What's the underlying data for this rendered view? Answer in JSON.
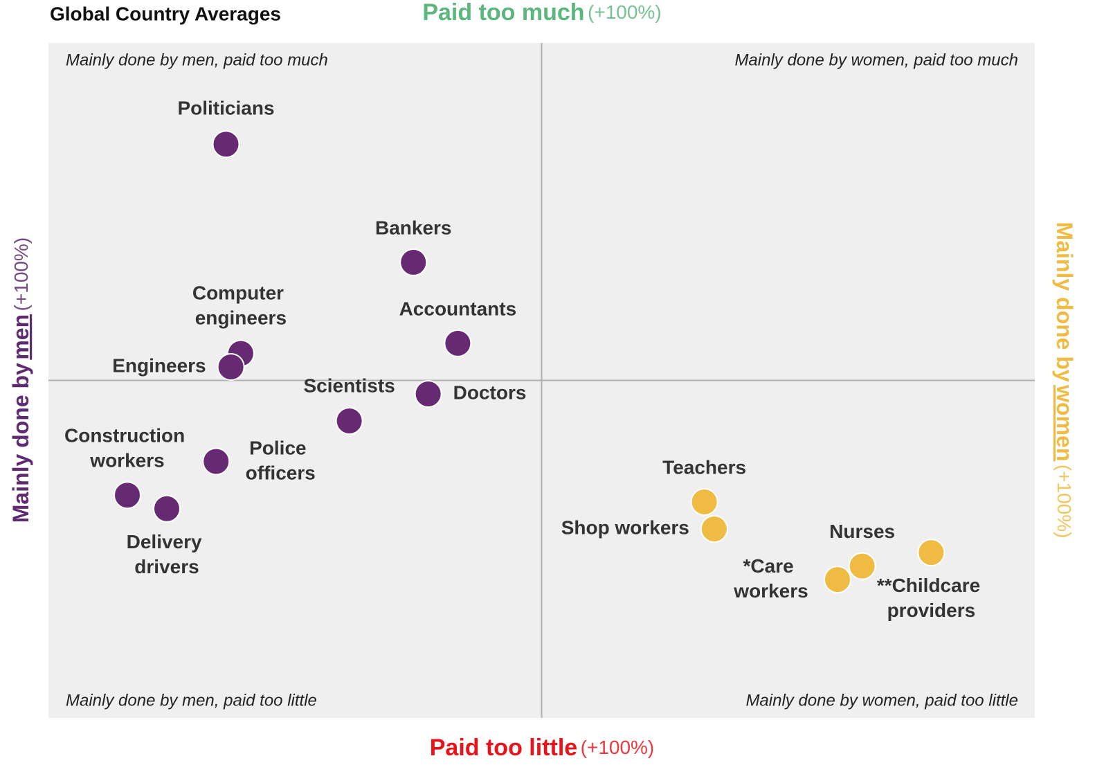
{
  "chart_data": {
    "type": "scatter",
    "title": "Global Country Averages",
    "top_label": {
      "main": "Paid too much",
      "suffix": "(+100%)",
      "color": "#5cb77e"
    },
    "bottom_label": {
      "main": "Paid too little",
      "suffix": "(+100%)",
      "color": "#e8141b"
    },
    "left_label": {
      "before": "Mainly done by",
      "emphasis": "men",
      "suffix": "(+100%)",
      "color": "#5e2a70"
    },
    "right_label": {
      "before": "Mainly done by",
      "emphasis": "women",
      "suffix": "(+100%)",
      "color": "#f0bb42"
    },
    "quadrants": {
      "top_left": "Mainly done by men, paid too much",
      "top_right": "Mainly done by women, paid too much",
      "bottom_left": "Mainly done by men, paid too little",
      "bottom_right": "Mainly done by women, paid too little"
    },
    "xlim": [
      -100,
      100
    ],
    "ylim": [
      -100,
      100
    ],
    "series": [
      {
        "color": "#662a73",
        "points": [
          {
            "label": "Politicians",
            "x": -64,
            "y": 70
          },
          {
            "label": "Bankers",
            "x": -26,
            "y": 35
          },
          {
            "label": "Computer engineers",
            "x": -61,
            "y": 8
          },
          {
            "label": "Engineers",
            "x": -63,
            "y": 4
          },
          {
            "label": "Accountants",
            "x": -17,
            "y": 11
          },
          {
            "label": "Doctors",
            "x": -23,
            "y": -4
          },
          {
            "label": "Scientists",
            "x": -39,
            "y": -12
          },
          {
            "label": "Police officers",
            "x": -66,
            "y": -24
          },
          {
            "label": "Construction workers",
            "x": -84,
            "y": -34
          },
          {
            "label": "Delivery drivers",
            "x": -76,
            "y": -38
          }
        ]
      },
      {
        "color": "#f0bb42",
        "points": [
          {
            "label": "Teachers",
            "x": 33,
            "y": -36
          },
          {
            "label": "Shop workers",
            "x": 35,
            "y": -44
          },
          {
            "label": "Nurses",
            "x": 65,
            "y": -55
          },
          {
            "label": "*Care workers",
            "x": 60,
            "y": -59
          },
          {
            "label": "**Childcare providers",
            "x": 79,
            "y": -51
          }
        ]
      }
    ]
  }
}
